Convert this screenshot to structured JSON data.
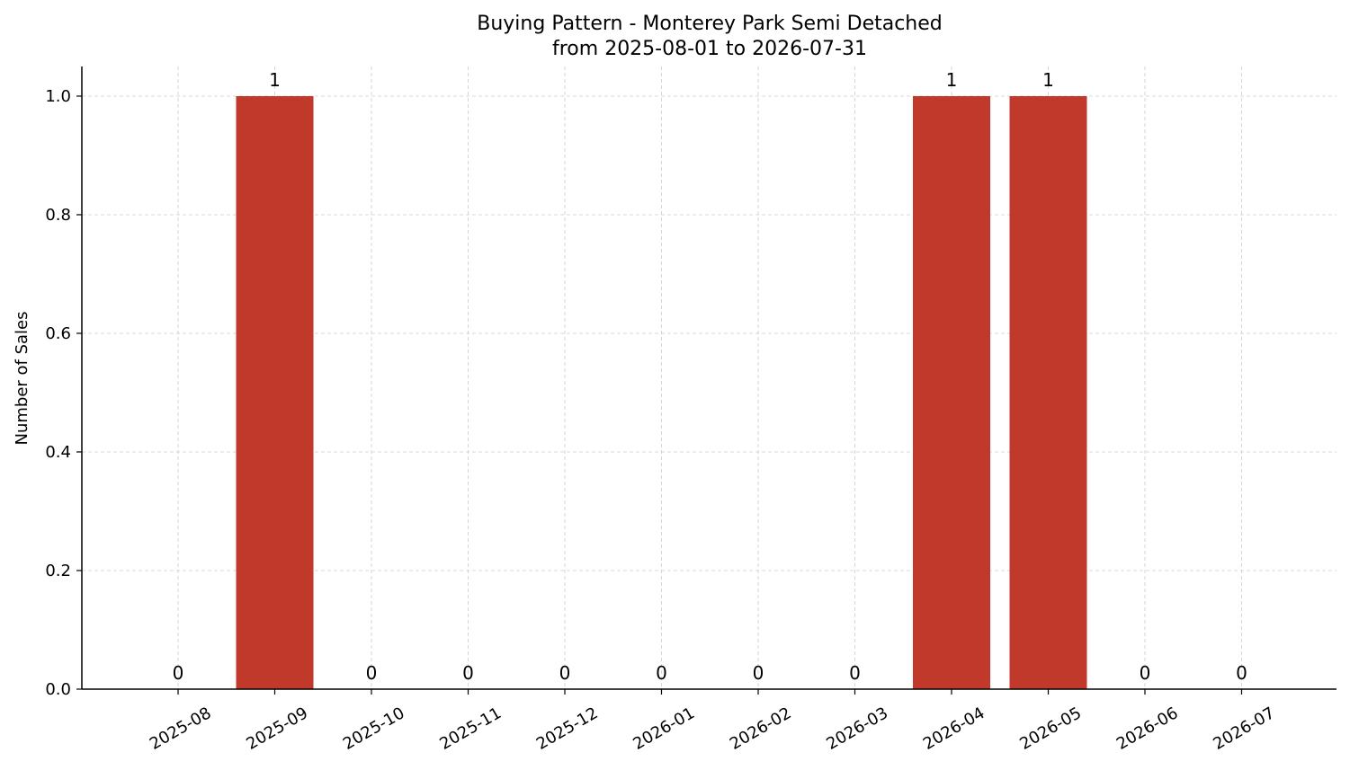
{
  "chart_data": {
    "type": "bar",
    "title": "Buying Pattern - Monterey Park Semi Detached",
    "subtitle": "from 2025-08-01 to 2026-07-31",
    "xlabel": "",
    "ylabel": "Number of Sales",
    "categories": [
      "2025-08",
      "2025-09",
      "2025-10",
      "2025-11",
      "2025-12",
      "2026-01",
      "2026-02",
      "2026-03",
      "2026-04",
      "2026-05",
      "2026-06",
      "2026-07"
    ],
    "values": [
      0,
      1,
      0,
      0,
      0,
      0,
      0,
      0,
      1,
      1,
      0,
      0
    ],
    "ylim": [
      0,
      1.05
    ],
    "yticks": [
      "0.0",
      "0.2",
      "0.4",
      "0.6",
      "0.8",
      "1.0"
    ],
    "grid": true,
    "bar_color": "#c0392b"
  }
}
